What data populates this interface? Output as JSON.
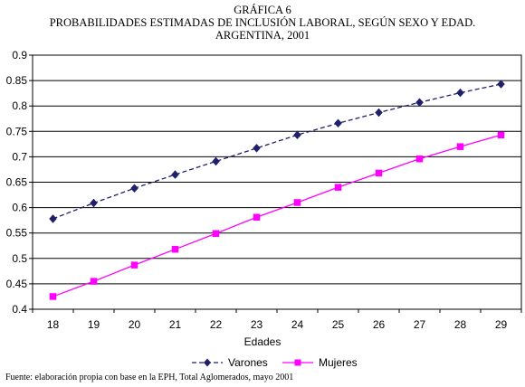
{
  "header": {
    "line1": "GRÁFICA 6",
    "line2": "PROBABILIDADES ESTIMADAS DE INCLUSIÓN LABORAL, SEGÚN SEXO Y EDAD.",
    "line3": "ARGENTINA, 2001"
  },
  "source": "Fuente: elaboración propia con base en la EPH, Total Aglomerados, mayo 2001",
  "chart_data": {
    "type": "line",
    "title": "PROBABILIDADES ESTIMADAS DE INCLUSIÓN LABORAL, SEGÚN SEXO Y EDAD. ARGENTINA, 2001",
    "xlabel": "Edades",
    "ylabel": "",
    "x": [
      18,
      19,
      20,
      21,
      22,
      23,
      24,
      25,
      26,
      27,
      28,
      29
    ],
    "ylim": [
      0.4,
      0.9
    ],
    "yticks": [
      "0.4",
      "0.45",
      "0.5",
      "0.55",
      "0.6",
      "0.65",
      "0.7",
      "0.75",
      "0.8",
      "0.85",
      "0.9"
    ],
    "grid": true,
    "legend_position": "bottom",
    "series": [
      {
        "name": "Varones",
        "color": "#1f1f6b",
        "line_style": "dashed",
        "marker": "diamond",
        "values": [
          0.578,
          0.609,
          0.638,
          0.665,
          0.691,
          0.717,
          0.743,
          0.766,
          0.787,
          0.807,
          0.826,
          0.843
        ]
      },
      {
        "name": "Mujeres",
        "color": "#ff00ff",
        "line_style": "solid",
        "marker": "square",
        "values": [
          0.425,
          0.455,
          0.487,
          0.518,
          0.549,
          0.581,
          0.61,
          0.64,
          0.668,
          0.696,
          0.72,
          0.743
        ]
      }
    ]
  }
}
